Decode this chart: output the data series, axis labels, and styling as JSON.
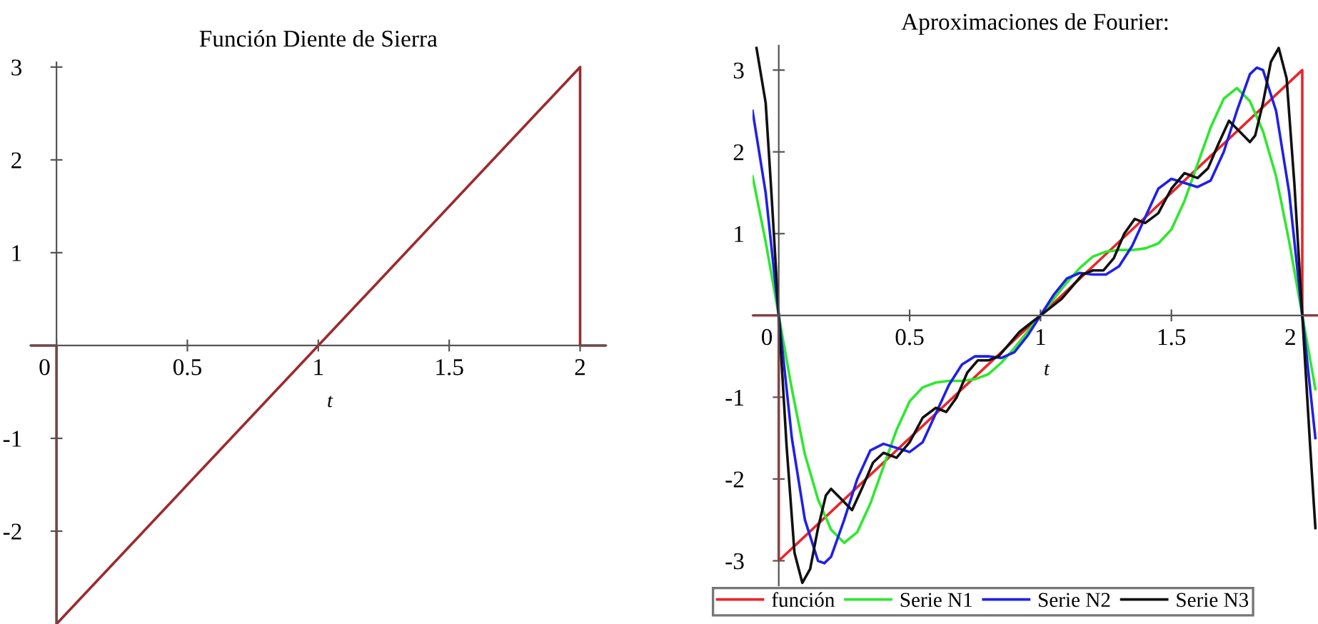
{
  "chart_data": [
    {
      "type": "line",
      "title": "Función Diente de Sierra",
      "xlabel": "t",
      "xlim": [
        -0.1,
        2.1
      ],
      "ylim": [
        -3,
        3.05
      ],
      "xticks": [
        0,
        0.5,
        1,
        1.5,
        2
      ],
      "yticks": [
        -2,
        -1,
        1,
        2,
        3
      ],
      "series": [
        {
          "color": "#9c2a2e",
          "x": [
            -0.1,
            0,
            0,
            2,
            2,
            2.1
          ],
          "values": [
            0,
            0,
            -3,
            3,
            0,
            0
          ]
        }
      ]
    },
    {
      "type": "line",
      "title": "Aproximaciones de Fourier:",
      "xlabel": "t",
      "xlim": [
        -0.1,
        2.06
      ],
      "ylim": [
        -3.3,
        3.3
      ],
      "xticks": [
        0,
        0.5,
        1,
        1.5,
        2
      ],
      "yticks": [
        -3,
        -2,
        -1,
        1,
        2,
        3
      ],
      "legend": "bottom",
      "series": [
        {
          "name": "función",
          "color": "#e8262a",
          "x": [
            -0.1,
            0,
            0,
            2,
            2,
            2.06
          ],
          "values": [
            0,
            0,
            -3,
            3,
            0,
            0
          ]
        },
        {
          "name": "Serie N1",
          "color": "#2ee82e",
          "x": [
            -0.1,
            -0.05,
            0,
            0.05,
            0.1,
            0.15,
            0.2,
            0.25,
            0.3,
            0.35,
            0.4,
            0.45,
            0.5,
            0.55,
            0.6,
            0.65,
            0.7,
            0.75,
            0.8,
            0.85,
            0.9,
            0.95,
            1,
            1.05,
            1.1,
            1.15,
            1.2,
            1.25,
            1.3,
            1.35,
            1.4,
            1.45,
            1.5,
            1.55,
            1.6,
            1.65,
            1.7,
            1.75,
            1.8,
            1.85,
            1.9,
            1.95,
            2,
            2.05
          ],
          "values": [
            1.7,
            0.9,
            0,
            -0.9,
            -1.7,
            -2.25,
            -2.62,
            -2.78,
            -2.65,
            -2.3,
            -1.85,
            -1.4,
            -1.05,
            -0.88,
            -0.82,
            -0.8,
            -0.8,
            -0.78,
            -0.72,
            -0.58,
            -0.4,
            -0.2,
            0,
            0.2,
            0.4,
            0.58,
            0.72,
            0.78,
            0.8,
            0.8,
            0.82,
            0.88,
            1.05,
            1.4,
            1.85,
            2.3,
            2.65,
            2.78,
            2.62,
            2.25,
            1.7,
            0.9,
            0,
            -0.9
          ]
        },
        {
          "name": "Serie N2",
          "color": "#2020e8",
          "x": [
            -0.1,
            -0.05,
            0,
            0.05,
            0.1,
            0.15,
            0.174,
            0.2,
            0.25,
            0.3,
            0.35,
            0.4,
            0.45,
            0.5,
            0.55,
            0.6,
            0.65,
            0.7,
            0.75,
            0.8,
            0.85,
            0.9,
            0.95,
            1,
            1.05,
            1.1,
            1.15,
            1.2,
            1.25,
            1.3,
            1.35,
            1.4,
            1.45,
            1.5,
            1.55,
            1.6,
            1.65,
            1.7,
            1.75,
            1.8,
            1.826,
            1.85,
            1.9,
            1.95,
            2,
            2.05
          ],
          "values": [
            2.5,
            1.5,
            0,
            -1.5,
            -2.5,
            -3.0,
            -3.03,
            -2.95,
            -2.5,
            -2.0,
            -1.65,
            -1.57,
            -1.62,
            -1.67,
            -1.55,
            -1.2,
            -0.85,
            -0.6,
            -0.5,
            -0.5,
            -0.52,
            -0.45,
            -0.25,
            0,
            0.25,
            0.45,
            0.52,
            0.5,
            0.5,
            0.6,
            0.85,
            1.2,
            1.55,
            1.67,
            1.62,
            1.57,
            1.65,
            2.0,
            2.5,
            2.95,
            3.03,
            3.0,
            2.5,
            1.5,
            0,
            -1.5
          ]
        },
        {
          "name": "Serie N3",
          "color": "#111111",
          "x": [
            -0.085,
            -0.05,
            -0.03,
            0,
            0.03,
            0.06,
            0.09,
            0.12,
            0.15,
            0.18,
            0.2,
            0.24,
            0.28,
            0.32,
            0.36,
            0.4,
            0.45,
            0.5,
            0.55,
            0.6,
            0.64,
            0.68,
            0.72,
            0.76,
            0.8,
            0.84,
            0.88,
            0.92,
            0.96,
            1,
            1.04,
            1.08,
            1.12,
            1.16,
            1.2,
            1.24,
            1.28,
            1.32,
            1.36,
            1.4,
            1.45,
            1.5,
            1.55,
            1.6,
            1.64,
            1.68,
            1.72,
            1.76,
            1.8,
            1.82,
            1.85,
            1.88,
            1.91,
            1.94,
            1.97,
            2,
            2.03,
            2.05
          ],
          "values": [
            3.27,
            2.6,
            1.6,
            0,
            -1.6,
            -2.9,
            -3.27,
            -3.1,
            -2.6,
            -2.2,
            -2.12,
            -2.25,
            -2.38,
            -2.1,
            -1.8,
            -1.68,
            -1.74,
            -1.55,
            -1.25,
            -1.13,
            -1.18,
            -1.0,
            -0.7,
            -0.55,
            -0.55,
            -0.5,
            -0.35,
            -0.2,
            -0.1,
            0,
            0.1,
            0.2,
            0.35,
            0.5,
            0.55,
            0.55,
            0.7,
            1.0,
            1.18,
            1.13,
            1.25,
            1.55,
            1.74,
            1.68,
            1.8,
            2.1,
            2.38,
            2.25,
            2.12,
            2.2,
            2.6,
            3.1,
            3.27,
            2.9,
            1.6,
            0,
            -1.6,
            -2.6
          ]
        }
      ]
    }
  ]
}
